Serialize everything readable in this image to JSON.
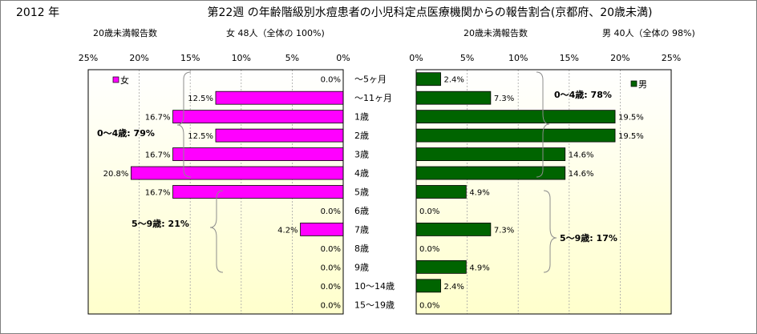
{
  "header": {
    "year": "2012 年",
    "title": "第22週 の年齢階級別水痘患者の小児科定点医療機関からの報告割合(京都府、20歳未満)"
  },
  "age_groups": [
    "～5ヶ月",
    "～11ヶ月",
    "1歳",
    "2歳",
    "3歳",
    "4歳",
    "5歳",
    "6歳",
    "7歳",
    "8歳",
    "9歳",
    "10～14歳",
    "15～19歳"
  ],
  "colors": {
    "female": "#ff00ff",
    "male": "#006400",
    "plot_gradient_top": "#ffffff",
    "plot_gradient_bottom": "#ffffcc"
  },
  "chart_data": [
    {
      "type": "bar",
      "orientation": "horizontal",
      "direction": "right-to-left",
      "subtitle_left": "20歳未満報告数",
      "subtitle_right": "女  48人（全体の  100%)",
      "xlim": [
        0,
        25
      ],
      "ticks": [
        "25%",
        "20%",
        "15%",
        "10%",
        "5%",
        "0%"
      ],
      "tick_values": [
        25,
        20,
        15,
        10,
        5,
        0
      ],
      "legend": {
        "label": "女",
        "position": "top-left"
      },
      "series": [
        {
          "name": "女",
          "values": [
            0.0,
            12.5,
            16.7,
            12.5,
            16.7,
            20.8,
            16.7,
            0.0,
            4.2,
            0.0,
            0.0,
            0.0,
            0.0
          ],
          "labels": [
            "0.0%",
            "12.5%",
            "16.7%",
            "12.5%",
            "16.7%",
            "20.8%",
            "16.7%",
            "0.0%",
            "4.2%",
            "0.0%",
            "0.0%",
            "0.0%",
            "0.0%"
          ]
        }
      ],
      "annotations": [
        {
          "text": "0～4歳: 79%"
        },
        {
          "text": "5～9歳: 21%"
        }
      ]
    },
    {
      "type": "bar",
      "orientation": "horizontal",
      "direction": "left-to-right",
      "subtitle_left": "20歳未満報告数",
      "subtitle_right": "男  40人（全体の  98%)",
      "xlim": [
        0,
        25
      ],
      "ticks": [
        "0%",
        "5%",
        "10%",
        "15%",
        "20%",
        "25%"
      ],
      "tick_values": [
        0,
        5,
        10,
        15,
        20,
        25
      ],
      "legend": {
        "label": "男",
        "position": "top-right"
      },
      "series": [
        {
          "name": "男",
          "values": [
            2.4,
            7.3,
            19.5,
            19.5,
            14.6,
            14.6,
            4.9,
            0.0,
            7.3,
            0.0,
            4.9,
            2.4,
            0.0
          ],
          "labels": [
            "2.4%",
            "7.3%",
            "19.5%",
            "19.5%",
            "14.6%",
            "14.6%",
            "4.9%",
            "0.0%",
            "7.3%",
            "0.0%",
            "4.9%",
            "2.4%",
            "0.0%"
          ]
        }
      ],
      "annotations": [
        {
          "text": "0～4歳: 78%"
        },
        {
          "text": "5～9歳: 17%"
        }
      ]
    }
  ]
}
